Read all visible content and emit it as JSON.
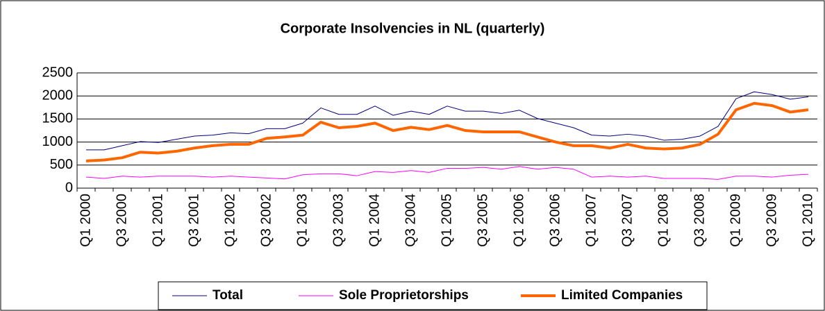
{
  "chart_data": {
    "type": "line",
    "title": "Corporate Insolvencies in NL (quarterly)",
    "categories": [
      "Q1 2000",
      null,
      "Q3 2000",
      null,
      "Q1 2001",
      null,
      "Q3 2001",
      null,
      "Q1 2002",
      null,
      "Q3 2002",
      null,
      "Q1 2003",
      null,
      "Q3 2003",
      null,
      "Q1 2004",
      null,
      "Q3 2004",
      null,
      "Q1 2005",
      null,
      "Q3 2005",
      null,
      "Q1 2006",
      null,
      "Q3 2006",
      null,
      "Q1 2007",
      null,
      "Q3 2007",
      null,
      "Q1 2008",
      null,
      "Q3 2008",
      null,
      "Q1 2009",
      null,
      "Q3 2009",
      null,
      "Q1 2010"
    ],
    "series": [
      {
        "name": "Total",
        "color": "#000080",
        "width": 1,
        "values": [
          830,
          830,
          920,
          1010,
          990,
          1060,
          1130,
          1150,
          1200,
          1180,
          1290,
          1290,
          1410,
          1740,
          1600,
          1600,
          1780,
          1580,
          1670,
          1600,
          1780,
          1670,
          1670,
          1620,
          1690,
          1510,
          1410,
          1310,
          1150,
          1130,
          1170,
          1130,
          1040,
          1060,
          1130,
          1340,
          1940,
          2090,
          2030,
          1930,
          1980
        ]
      },
      {
        "name": "Sole Proprietorships",
        "color": "#ff00ff",
        "width": 1,
        "values": [
          240,
          210,
          260,
          240,
          260,
          260,
          260,
          240,
          260,
          240,
          220,
          200,
          290,
          310,
          310,
          270,
          360,
          340,
          380,
          340,
          430,
          430,
          450,
          410,
          470,
          410,
          450,
          410,
          240,
          260,
          240,
          260,
          210,
          210,
          210,
          190,
          260,
          260,
          240,
          280,
          300
        ]
      },
      {
        "name": "Limited Companies",
        "color": "#ff6600",
        "width": 4,
        "values": [
          590,
          610,
          660,
          780,
          760,
          800,
          870,
          920,
          950,
          950,
          1080,
          1110,
          1150,
          1430,
          1310,
          1340,
          1410,
          1250,
          1320,
          1270,
          1360,
          1250,
          1220,
          1220,
          1220,
          1110,
          1000,
          920,
          920,
          870,
          950,
          870,
          850,
          870,
          950,
          1170,
          1700,
          1840,
          1790,
          1650,
          1700
        ]
      }
    ],
    "ylim": [
      0,
      2500
    ],
    "yticks": [
      0,
      500,
      1000,
      1500,
      2000,
      2500
    ],
    "grid": true,
    "legend": "bottom"
  }
}
